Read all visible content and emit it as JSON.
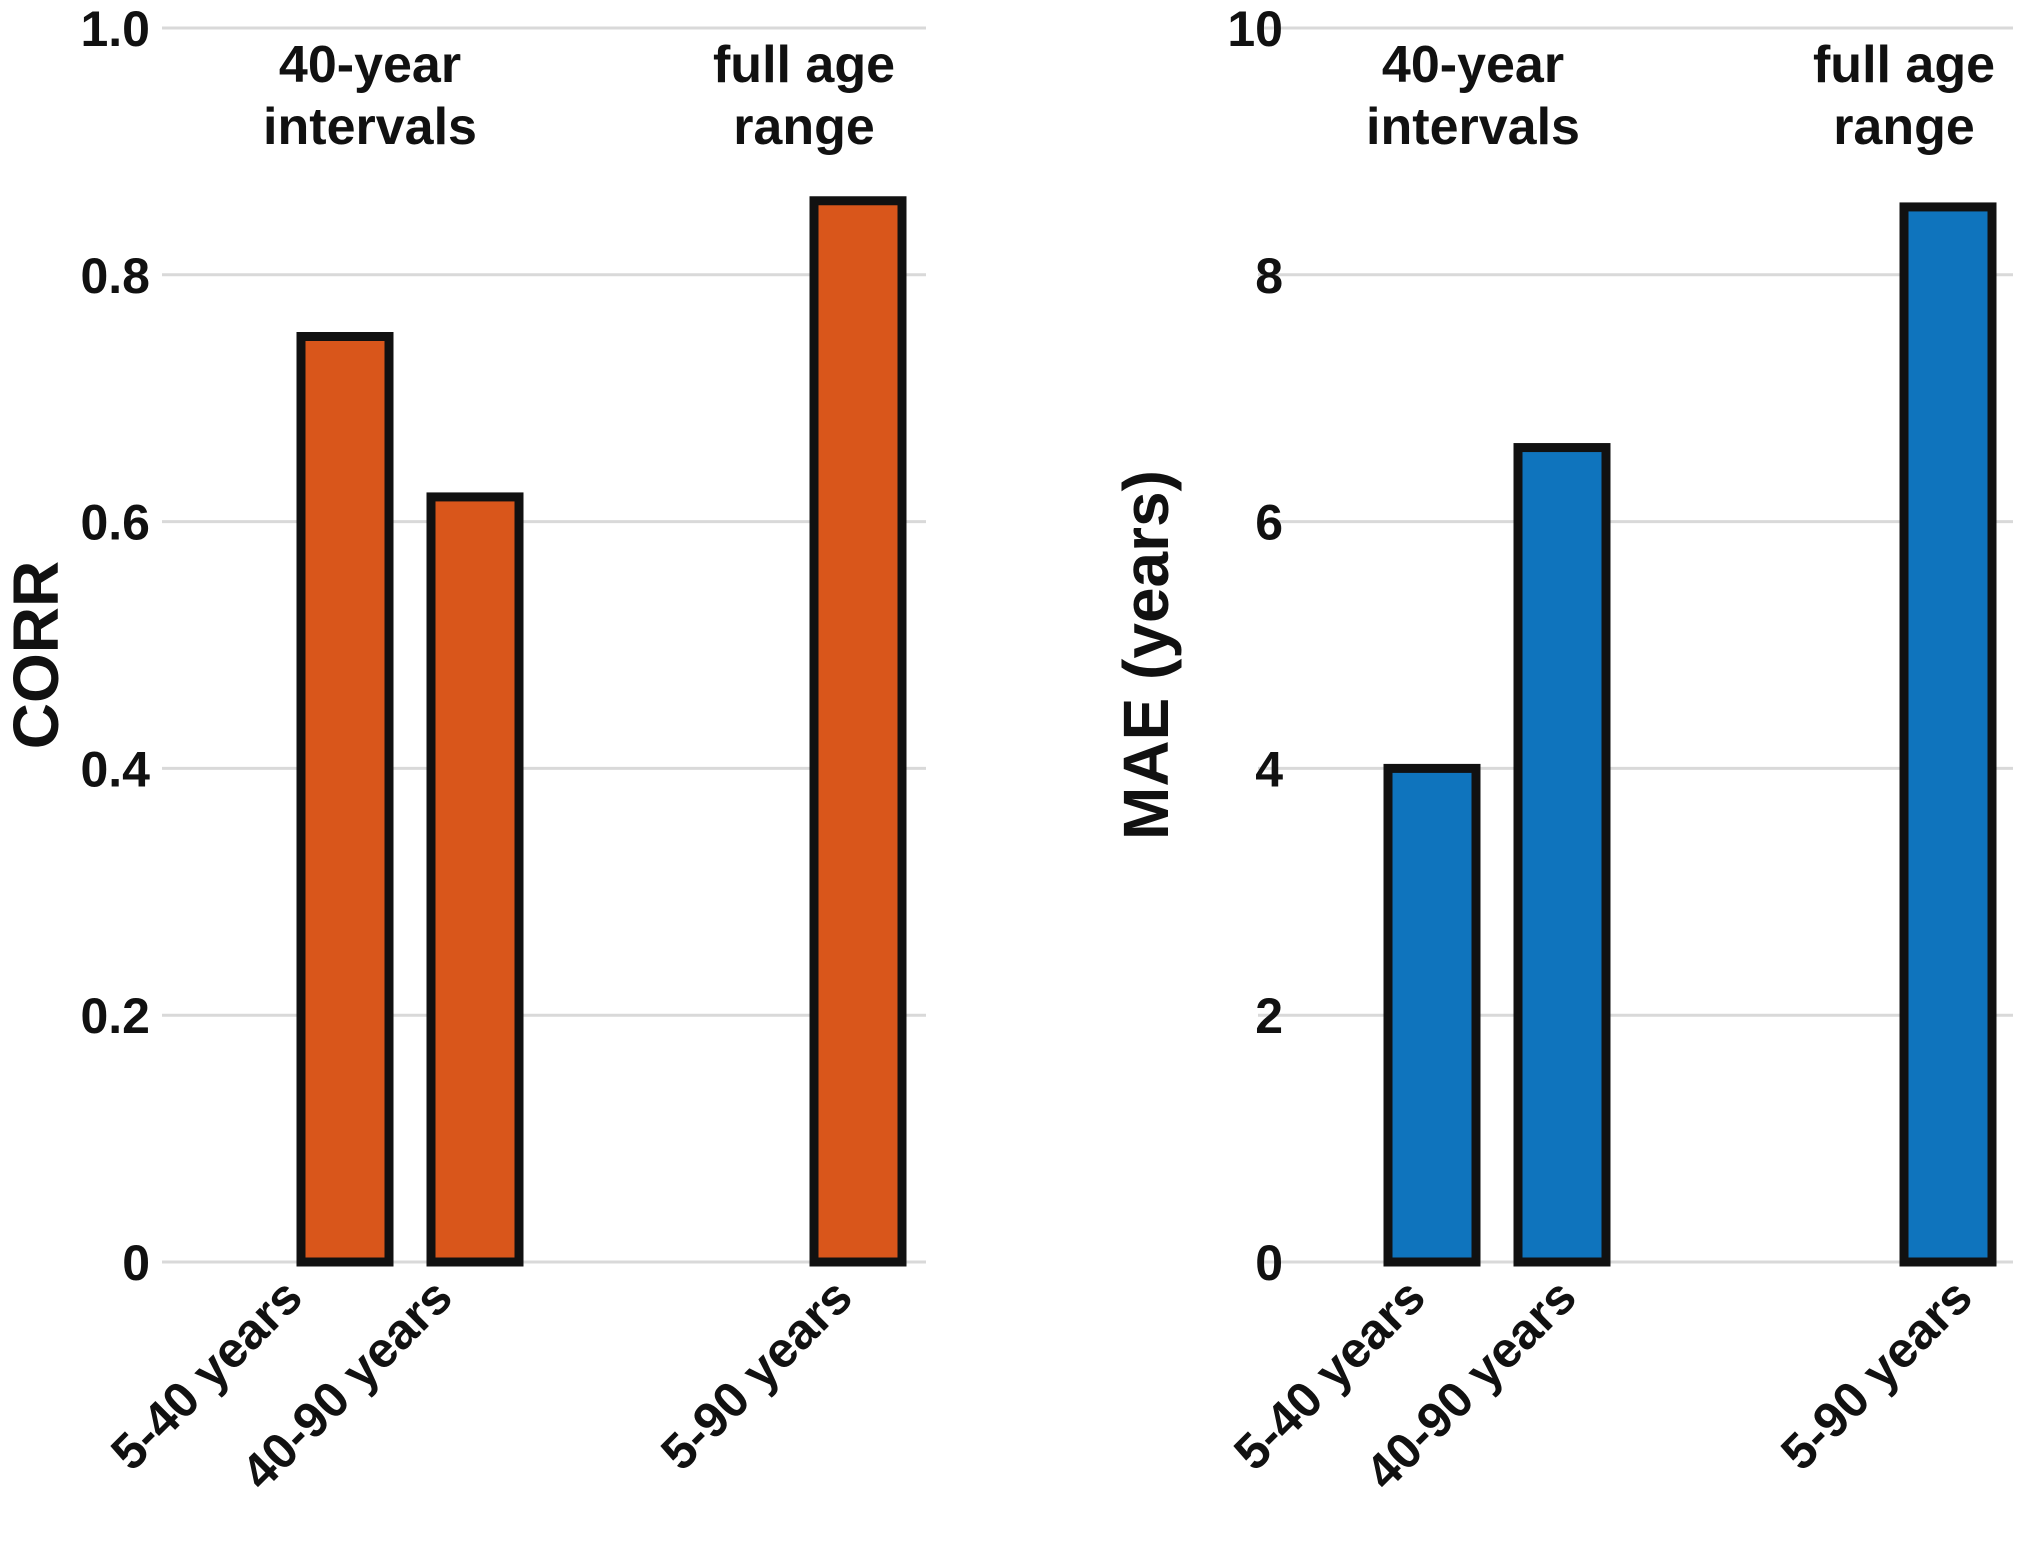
{
  "chart_data": [
    {
      "type": "bar",
      "ylabel": "CORR",
      "xlabel": "",
      "ylim": [
        0,
        1.0
      ],
      "yticks": [
        "0",
        "0.2",
        "0.4",
        "0.6",
        "0.8",
        "1.0"
      ],
      "ytick_values": [
        0,
        0.2,
        0.4,
        0.6,
        0.8,
        1.0
      ],
      "grid": true,
      "categories": [
        "5-40 years",
        "40-90 years",
        "5-90 years"
      ],
      "values": [
        0.75,
        0.62,
        0.86
      ],
      "bar_color": "#d9561b",
      "annotations": [
        {
          "lines": [
            "40-year",
            "intervals"
          ]
        },
        {
          "lines": [
            "full age",
            "range"
          ]
        }
      ]
    },
    {
      "type": "bar",
      "ylabel": "MAE (years)",
      "xlabel": "",
      "ylim": [
        0,
        10
      ],
      "yticks": [
        "0",
        "2",
        "4",
        "6",
        "8",
        "10"
      ],
      "ytick_values": [
        0,
        2,
        4,
        6,
        8,
        10
      ],
      "grid": true,
      "categories": [
        "5-40 years",
        "40-90 years",
        "5-90 years"
      ],
      "values": [
        4.0,
        6.6,
        8.55
      ],
      "bar_color": "#0f74bd",
      "annotations": [
        {
          "lines": [
            "40-year",
            "intervals"
          ]
        },
        {
          "lines": [
            "full age",
            "range"
          ]
        }
      ]
    }
  ]
}
